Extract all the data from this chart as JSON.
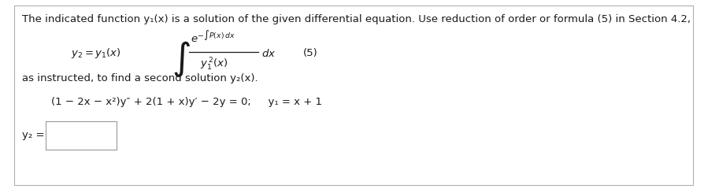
{
  "bg_color": "#ffffff",
  "border_color": "#b0b0b0",
  "text_color": "#1a1a1a",
  "font_size_main": 9.5,
  "font_size_formula": 9.5,
  "font_size_small": 8.0,
  "font_size_integral": 20,
  "line1": "The indicated function y₁(x) is a solution of the given differential equation. Use reduction of order or formula (5) in Section 4.2,",
  "formula_label": "(5)",
  "line_as": "as instructed, to find a second solution y₂(x).",
  "line_eq": "(1 − 2x − x²)y″ + 2(1 + x)y′ − 2y = 0;   y₁ = x + 1",
  "y2_label": "y₂ ="
}
